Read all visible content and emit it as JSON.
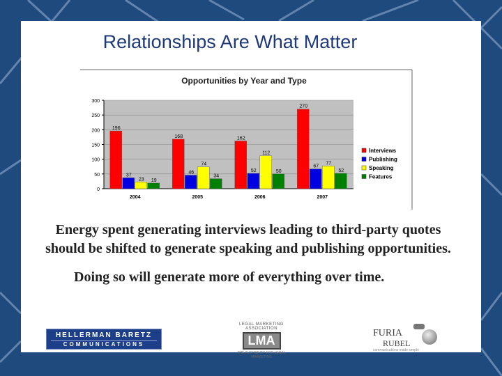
{
  "slide": {
    "title": "Relationships Are What Matter",
    "paragraph1": "Energy spent generating interviews leading to third-party quotes should be shifted to generate speaking and publishing opportunities.",
    "paragraph2": "Doing so will generate more of everything over time."
  },
  "logos": {
    "hb_line1": "HELLERMAN BARETZ",
    "hb_line2": "COMMUNICATIONS",
    "lma_top": "LEGAL MARKETING ASSOCIATION",
    "lma_mark": "LMA",
    "lma_bottom": "THE AUTHORITY FOR LEGAL MARKETING",
    "fr_line1": "FURIA",
    "fr_line2": "RUBEL",
    "fr_tag": "communications made simple"
  },
  "colors": {
    "background": "#1f4a7d",
    "title": "#1f3a7a",
    "plot_area": "#c0c0c0"
  },
  "chart_data": {
    "type": "bar",
    "title": "Opportunities by Year and Type",
    "xlabel": "",
    "ylabel": "",
    "categories": [
      "2004",
      "2005",
      "2006",
      "2007"
    ],
    "ylim": [
      0,
      300
    ],
    "yticks": [
      0,
      50,
      100,
      150,
      200,
      250,
      300
    ],
    "grid": true,
    "legend_position": "right",
    "series": [
      {
        "name": "Interviews",
        "color": "#ff0000",
        "values": [
          196,
          168,
          162,
          270
        ]
      },
      {
        "name": "Publishing",
        "color": "#0000e0",
        "values": [
          37,
          46,
          52,
          67
        ]
      },
      {
        "name": "Speaking",
        "color": "#ffff00",
        "values": [
          23,
          74,
          112,
          77
        ]
      },
      {
        "name": "Features",
        "color": "#008000",
        "values": [
          19,
          34,
          50,
          52
        ]
      }
    ]
  }
}
